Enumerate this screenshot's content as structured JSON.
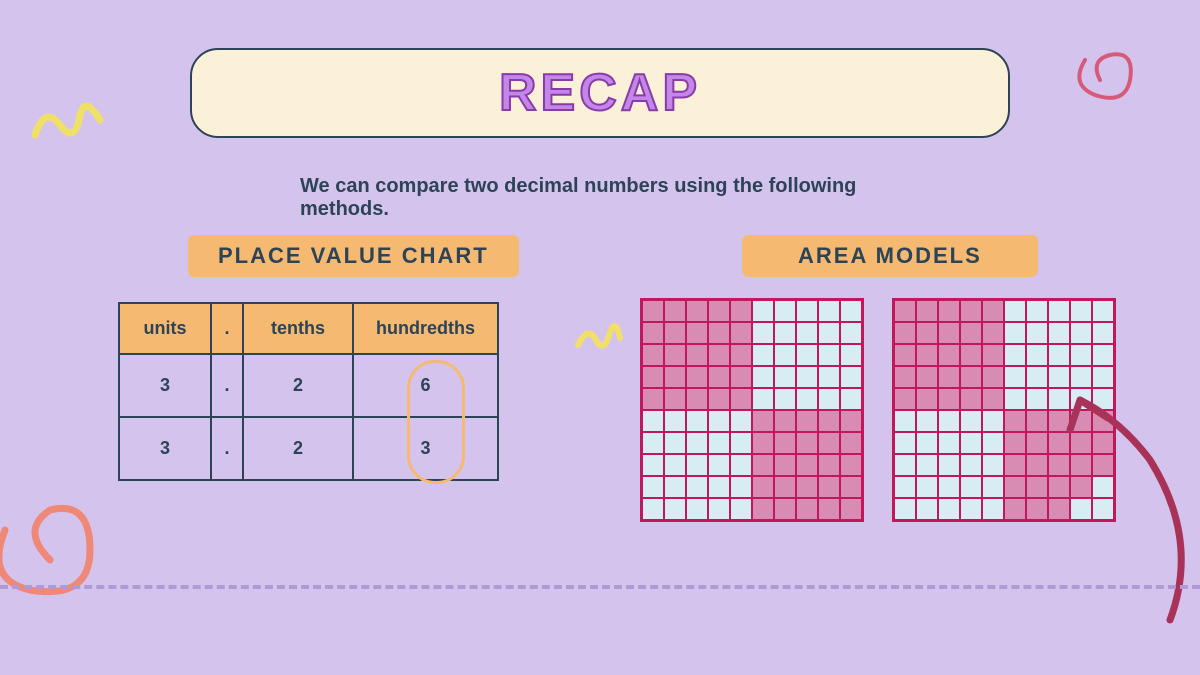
{
  "title": "RECAP",
  "subtitle": "We can compare two decimal numbers using the following methods.",
  "sections": {
    "placeValue": {
      "label": "PLACE VALUE CHART",
      "headers": [
        "units",
        ".",
        "tenths",
        "hundredths"
      ],
      "rows": [
        [
          "3",
          ".",
          "2",
          "6"
        ],
        [
          "3",
          ".",
          "2",
          "3"
        ]
      ]
    },
    "areaModels": {
      "label": "AREA MODELS",
      "grids": [
        {
          "rows": 10,
          "cols": 10,
          "pattern": [
            [
              1,
              1,
              1,
              1,
              1,
              0,
              0,
              0,
              0,
              0
            ],
            [
              1,
              1,
              1,
              1,
              1,
              0,
              0,
              0,
              0,
              0
            ],
            [
              1,
              1,
              1,
              1,
              1,
              0,
              0,
              0,
              0,
              0
            ],
            [
              1,
              1,
              1,
              1,
              1,
              0,
              0,
              0,
              0,
              0
            ],
            [
              1,
              1,
              1,
              1,
              1,
              0,
              0,
              0,
              0,
              0
            ],
            [
              0,
              0,
              0,
              0,
              0,
              1,
              1,
              1,
              1,
              1
            ],
            [
              0,
              0,
              0,
              0,
              0,
              1,
              1,
              1,
              1,
              1
            ],
            [
              0,
              0,
              0,
              0,
              0,
              1,
              1,
              1,
              1,
              1
            ],
            [
              0,
              0,
              0,
              0,
              0,
              1,
              1,
              1,
              1,
              1
            ],
            [
              0,
              0,
              0,
              0,
              0,
              1,
              1,
              1,
              1,
              1
            ]
          ]
        },
        {
          "rows": 10,
          "cols": 10,
          "pattern": [
            [
              1,
              1,
              1,
              1,
              1,
              0,
              0,
              0,
              0,
              0
            ],
            [
              1,
              1,
              1,
              1,
              1,
              0,
              0,
              0,
              0,
              0
            ],
            [
              1,
              1,
              1,
              1,
              1,
              0,
              0,
              0,
              0,
              0
            ],
            [
              1,
              1,
              1,
              1,
              1,
              0,
              0,
              0,
              0,
              0
            ],
            [
              1,
              1,
              1,
              1,
              1,
              0,
              0,
              0,
              0,
              0
            ],
            [
              0,
              0,
              0,
              0,
              0,
              1,
              1,
              1,
              1,
              1
            ],
            [
              0,
              0,
              0,
              0,
              0,
              1,
              1,
              1,
              1,
              1
            ],
            [
              0,
              0,
              0,
              0,
              0,
              1,
              1,
              1,
              1,
              1
            ],
            [
              0,
              0,
              0,
              0,
              0,
              1,
              1,
              1,
              1,
              0
            ],
            [
              0,
              0,
              0,
              0,
              0,
              1,
              1,
              1,
              0,
              0
            ]
          ]
        }
      ]
    }
  },
  "colors": {
    "background": "#d4c4ed",
    "titleBox": "#faf1d8",
    "titleText": "#c287e8",
    "titleStroke": "#8b3aa8",
    "label": "#f5b971",
    "text": "#2d4356",
    "gridBorder": "#c2185b",
    "filled": "#d98cb3",
    "empty": "#d8ecf3",
    "highlight": "#f5b971",
    "dashed": "#b199d6",
    "yellow": "#f0e068",
    "coral": "#f08878",
    "darkred": "#a83258"
  }
}
